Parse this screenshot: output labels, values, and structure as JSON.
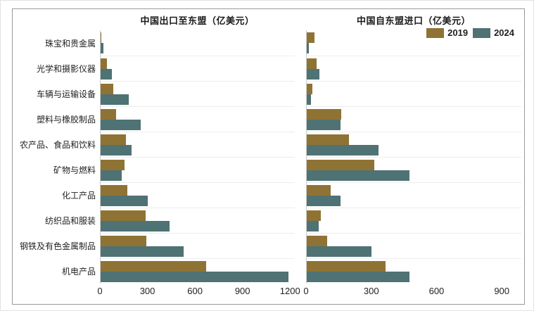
{
  "legend": {
    "items": [
      {
        "label": "2019",
        "color": "#8F7334"
      },
      {
        "label": "2024",
        "color": "#4F7274"
      }
    ]
  },
  "chart_data": [
    {
      "type": "bar",
      "orientation": "horizontal",
      "title": "中国出口至东盟（亿美元）",
      "unit": "亿美元",
      "categories": [
        "珠宝和贵金属",
        "光学和摄影仪器",
        "车辆与运输设备",
        "塑料与橡胶制品",
        "农产品、食品和饮料",
        "矿物与燃料",
        "化工产品",
        "纺织品和服装",
        "钢铁及有色金属制品",
        "机电产品"
      ],
      "series": [
        {
          "name": "2019",
          "values": [
            5,
            40,
            80,
            100,
            160,
            150,
            170,
            285,
            290,
            670
          ]
        },
        {
          "name": "2024",
          "values": [
            20,
            70,
            180,
            255,
            195,
            135,
            300,
            435,
            525,
            1190
          ]
        }
      ],
      "xticks": [
        0,
        300,
        600,
        900,
        1200
      ],
      "xlim": [
        0,
        1230
      ],
      "grid": "horizontal-separators",
      "legend_position": "none"
    },
    {
      "type": "bar",
      "orientation": "horizontal",
      "title": "中国自东盟进口（亿美元）",
      "unit": "亿美元",
      "categories": [
        "珠宝和贵金属",
        "光学和摄影仪器",
        "车辆与运输设备",
        "塑料与橡胶制品",
        "农产品、食品和饮料",
        "矿物与燃料",
        "化工产品",
        "纺织品和服装",
        "钢铁及有色金属制品",
        "机电产品"
      ],
      "series": [
        {
          "name": "2019",
          "values": [
            35,
            45,
            25,
            160,
            195,
            310,
            110,
            65,
            95,
            365
          ]
        },
        {
          "name": "2024",
          "values": [
            10,
            60,
            20,
            155,
            330,
            475,
            155,
            55,
            300,
            475
          ]
        }
      ],
      "xticks": [
        0,
        300,
        600,
        900
      ],
      "xlim": [
        0,
        990
      ],
      "grid": "horizontal-separators",
      "legend_position": "top-right"
    }
  ]
}
